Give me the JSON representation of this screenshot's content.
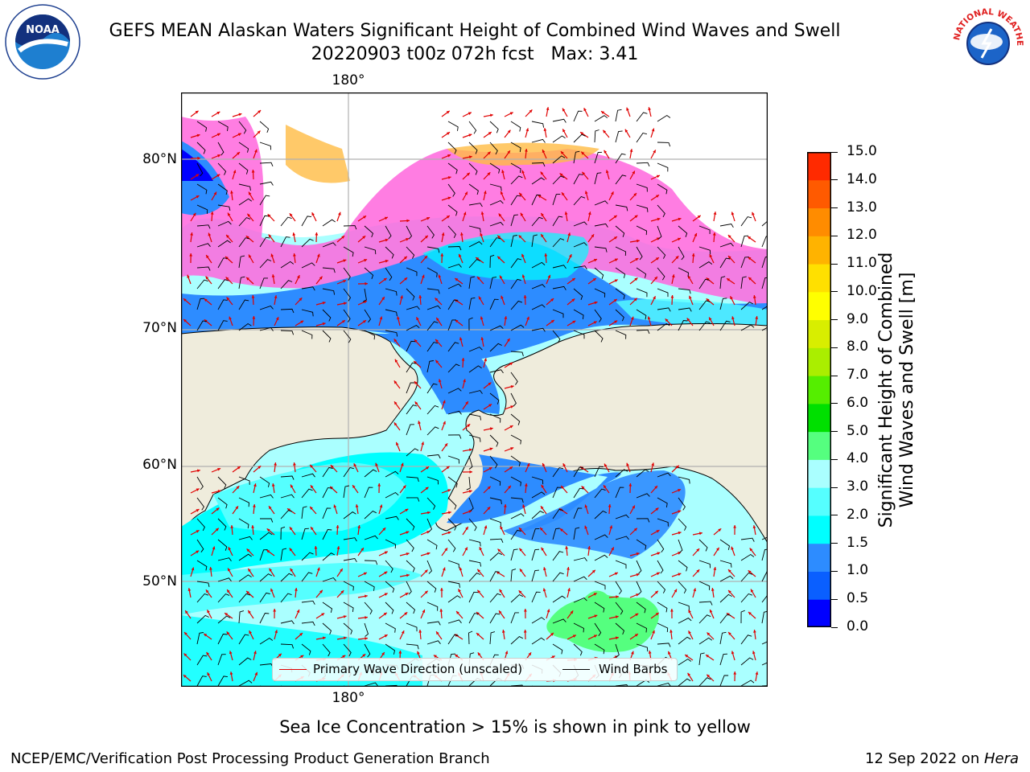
{
  "title": {
    "line1": "GEFS MEAN Alaskan Waters Significant Height of Combined Wind Waves and Swell",
    "line2": "20220903 t00z 072h fcst   Max: 3.41"
  },
  "logos": {
    "left": {
      "icon": "noaa-logo-icon",
      "text": "NOAA"
    },
    "right": {
      "icon": "nws-logo-icon",
      "text": "NATIONAL WEATHER SERVICE"
    }
  },
  "map": {
    "lon_label_top": "180°",
    "lon_label_bottom": "180°",
    "lat_labels": [
      "80°N",
      "70°N",
      "60°N",
      "50°N"
    ],
    "land_color": "#efecdc",
    "barb_color": "#000000",
    "wave_dir_color": "#e00000"
  },
  "legend": {
    "wave_dir_label": "Primary Wave Direction (unscaled)",
    "wind_barbs_label": "Wind Barbs"
  },
  "colorbar": {
    "label_line1": "Significant Height of Combined",
    "label_line2": "Wind Waves and Swell [m]",
    "ticks": [
      "0.0",
      "0.5",
      "1.0",
      "1.5",
      "2.0",
      "3.0",
      "4.0",
      "5.0",
      "6.0",
      "7.0",
      "8.0",
      "9.0",
      "10.0",
      "11.0",
      "12.0",
      "13.0",
      "14.0",
      "15.0"
    ],
    "colors": [
      "#0000ff",
      "#0a5fff",
      "#2d8cff",
      "#00ffff",
      "#55ffff",
      "#aaffff",
      "#55ff7f",
      "#00e000",
      "#55ee00",
      "#aaee00",
      "#d8ee00",
      "#ffff00",
      "#ffe000",
      "#ffb300",
      "#ff8c00",
      "#ff5a00",
      "#ff2a00"
    ]
  },
  "ice_note": "Sea Ice Concentration > 15% is shown in pink to yellow",
  "footer": {
    "left": "NCEP/EMC/Verification Post Processing Product Generation Branch",
    "right_date": "12 Sep 2022 on ",
    "right_host": "Hera"
  }
}
